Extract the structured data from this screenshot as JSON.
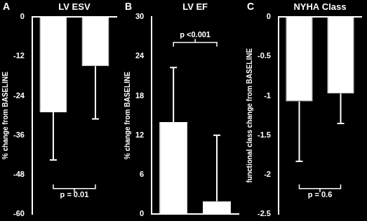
{
  "chart_data": [
    {
      "type": "bar",
      "panel": "A",
      "title": "LV ESV",
      "y_label": "% change from BASELINE",
      "categories": [
        null,
        null
      ],
      "values": [
        -29,
        -15
      ],
      "errors": [
        14.5,
        16
      ],
      "color": "#ffffff",
      "ylim": [
        -60,
        0
      ],
      "yticks": [
        0,
        -12,
        -24,
        -36,
        -48,
        -60
      ],
      "grid": false,
      "tick_labels": "y",
      "annotation": "p = 0.01"
    },
    {
      "type": "bar",
      "panel": "B",
      "title": "LV EF",
      "y_label": "% change from BASELINE",
      "categories": [
        null,
        null
      ],
      "values": [
        14,
        2
      ],
      "errors": [
        8.3,
        10
      ],
      "color": "#ffffff",
      "ylim": [
        0,
        30
      ],
      "yticks": [
        0,
        6,
        12,
        18,
        24,
        30
      ],
      "grid": false,
      "tick_labels": "y",
      "annotation": "p <0.001"
    },
    {
      "type": "bar",
      "panel": "C",
      "title": "NYHA Class",
      "y_label": "functional class change from BASELINE",
      "categories": [
        null,
        null
      ],
      "values": [
        -1.07,
        -0.97
      ],
      "errors": [
        0.76,
        0.38
      ],
      "color": "#ffffff",
      "ylim": [
        -2.5,
        0
      ],
      "yticks": [
        0,
        -0.5,
        -1,
        -1.5,
        -2,
        -2.5
      ],
      "grid": false,
      "tick_labels": "y",
      "annotation": "p = 0.6"
    }
  ]
}
